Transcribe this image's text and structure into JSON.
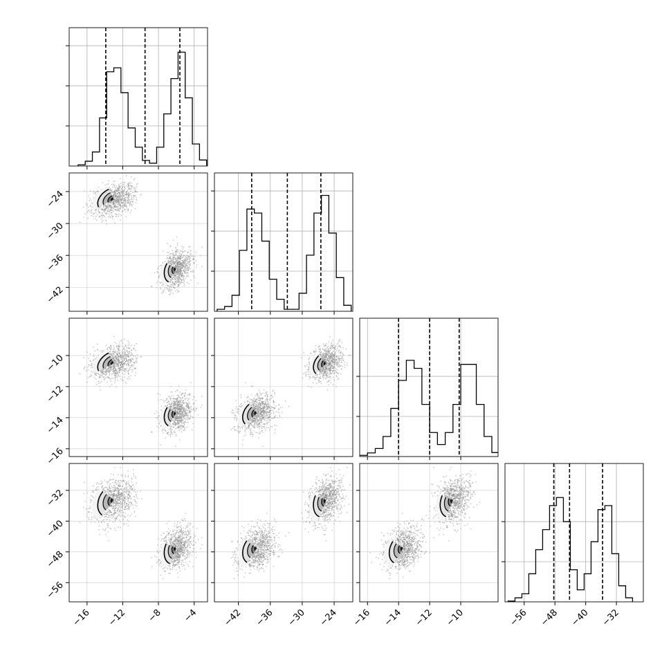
{
  "chart_data": {
    "type": "corner",
    "title": "",
    "n_params": 4,
    "params": [
      {
        "label": "",
        "range": [
          -18,
          -2.5
        ],
        "ticks": [
          -16,
          -12,
          -8,
          -4
        ],
        "tick_labels": [
          "−16",
          "−12",
          "−8",
          "−4"
        ],
        "quantiles": [
          -13.9,
          -9.5,
          -5.6
        ],
        "hist_max": 30,
        "hist_yticks": [
          10,
          20,
          30
        ],
        "hist_bin_edges": [
          -17.0,
          -16.2,
          -15.4,
          -14.6,
          -13.8,
          -13.0,
          -12.2,
          -11.4,
          -10.6,
          -9.8,
          -9.0,
          -8.2,
          -7.4,
          -6.6,
          -5.8,
          -5.0,
          -4.2,
          -3.4,
          -2.6
        ],
        "hist_counts": [
          0.3,
          1.2,
          3.5,
          12,
          23.5,
          24.5,
          18.3,
          9.5,
          4.7,
          1.4,
          0.7,
          4.7,
          13,
          21.8,
          28.4,
          17,
          5.5,
          1.5
        ]
      },
      {
        "label": "",
        "range": [
          -46.5,
          -20.5
        ],
        "ticks": [
          -42,
          -36,
          -30,
          -24
        ],
        "tick_labels": [
          "−42",
          "−36",
          "−30",
          "−24"
        ],
        "quantiles": [
          -39.5,
          -32.8,
          -26.5
        ],
        "hist_max": 30,
        "hist_yticks": [
          10,
          20,
          30
        ],
        "hist_bin_edges": [
          -46.0,
          -44.6,
          -43.2,
          -41.8,
          -40.4,
          -39.0,
          -37.6,
          -36.2,
          -34.8,
          -33.4,
          -32.0,
          -30.6,
          -29.2,
          -27.8,
          -26.4,
          -25.0,
          -23.6,
          -22.2,
          -20.8
        ],
        "hist_counts": [
          0.5,
          1.2,
          4,
          15.2,
          25.5,
          24.5,
          17.5,
          8,
          3,
          0.5,
          0.5,
          4.5,
          14,
          24.5,
          28.9,
          19.5,
          8.4,
          1.5
        ]
      },
      {
        "label": "",
        "range": [
          -16.5,
          -7.6
        ],
        "ticks": [
          -16,
          -14,
          -12,
          -10
        ],
        "tick_labels": [
          "−16",
          "−14",
          "−12",
          "−10"
        ],
        "quantiles": [
          -14.0,
          -12.0,
          -10.1
        ],
        "hist_max": 30,
        "hist_yticks": [
          10,
          20
        ],
        "hist_bin_edges": [
          -16.5,
          -16.0,
          -15.5,
          -15.0,
          -14.5,
          -14.0,
          -13.5,
          -13.0,
          -12.5,
          -12.0,
          -11.5,
          -11.0,
          -10.5,
          -10.0,
          -9.5,
          -9.0,
          -8.5,
          -8.0,
          -7.5
        ],
        "hist_counts": [
          0.3,
          0.9,
          2,
          5,
          12,
          19,
          24,
          22,
          13,
          6,
          3,
          6,
          13,
          23,
          23,
          13,
          5,
          1
        ]
      },
      {
        "label": "",
        "range": [
          -61,
          -25
        ],
        "ticks": [
          -56,
          -48,
          -40,
          -32
        ],
        "tick_labels": [
          "−56",
          "−48",
          "−40",
          "−32"
        ],
        "quantiles": [
          -48.3,
          -44.2,
          -35.6
        ],
        "hist_max": 30,
        "hist_yticks": [
          10,
          20
        ],
        "hist_bin_edges": [
          -60.2,
          -58.4,
          -56.6,
          -54.8,
          -53.0,
          -51.2,
          -49.4,
          -47.6,
          -45.8,
          -44.0,
          -42.2,
          -40.4,
          -38.6,
          -36.8,
          -35.0,
          -33.2,
          -31.4,
          -29.6,
          -27.8
        ],
        "hist_counts": [
          0.2,
          1,
          2,
          7,
          13,
          18,
          24,
          26,
          20,
          8,
          3,
          7,
          15,
          23,
          24,
          12,
          4,
          1
        ]
      }
    ],
    "clusters": [
      {
        "mean": [
          -13.0,
          -25.5,
          -10.5,
          -34.5
        ],
        "sd": [
          1.2,
          1.6,
          0.55,
          3.0
        ],
        "corr": 0.55
      },
      {
        "mean": [
          -6.0,
          -38.5,
          -13.7,
          -47.0
        ],
        "sd": [
          0.9,
          1.8,
          0.6,
          2.8
        ],
        "corr": 0.55
      }
    ],
    "grid": true
  }
}
